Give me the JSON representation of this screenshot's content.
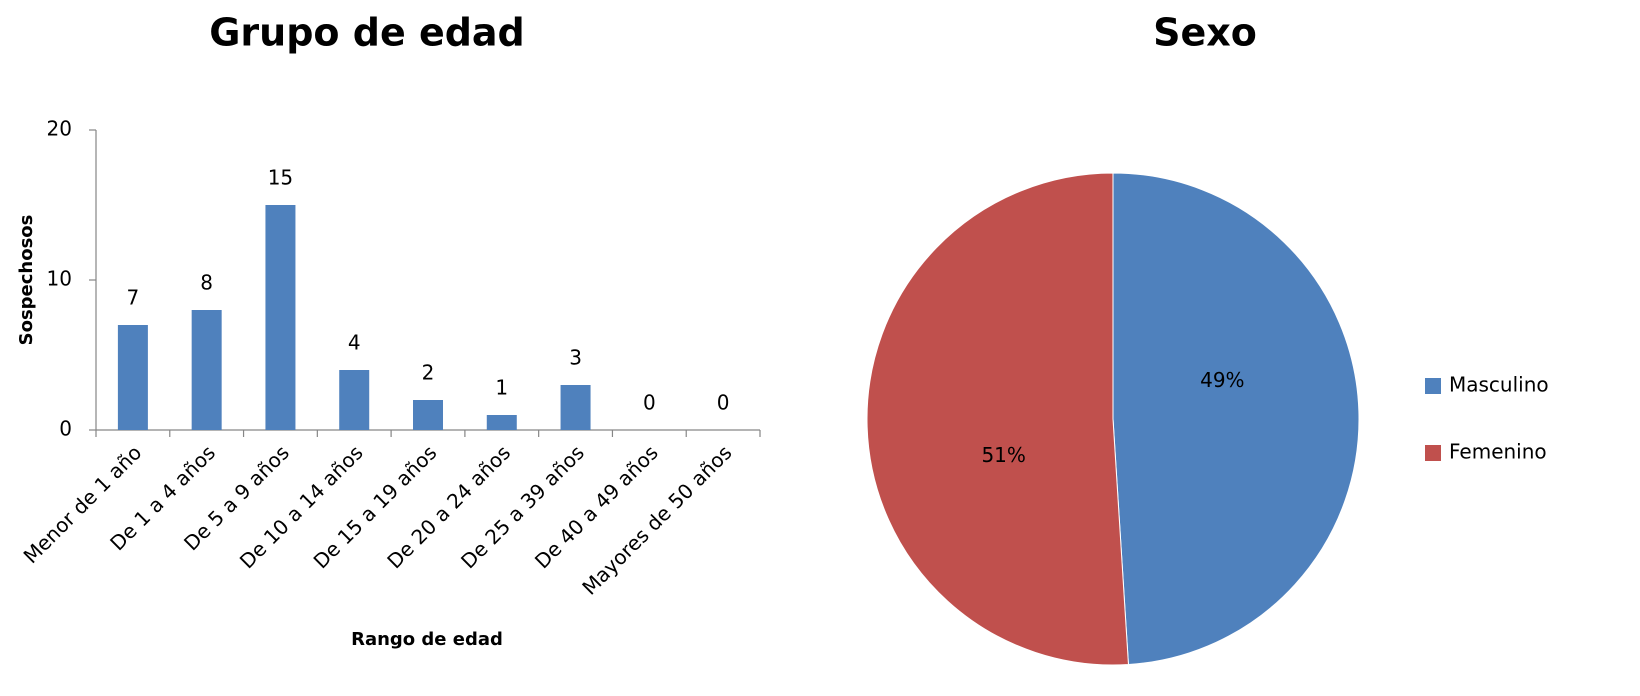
{
  "chart_data": [
    {
      "type": "bar",
      "title": "Grupo de edad",
      "x_label": "Rango de edad",
      "y_label": "Sospechosos",
      "categories": [
        "Menor de 1 año",
        "De 1 a 4 años",
        "De 5 a 9 años",
        "De 10 a 14 años",
        "De 15 a 19 años",
        "De 20 a 24 años",
        "De 25 a 39 años",
        "De 40 a 49 años",
        "Mayores de 50 años"
      ],
      "values": [
        7,
        8,
        15,
        4,
        2,
        1,
        3,
        0,
        0
      ],
      "color": "#4f81bd",
      "ylim": [
        0,
        20
      ],
      "yticks": [
        0,
        10,
        20
      ],
      "grid": false
    },
    {
      "type": "pie",
      "title": "Sexo",
      "categories": [
        "Masculino",
        "Femenino"
      ],
      "values": [
        49,
        51
      ],
      "value_labels": [
        "49%",
        "51%"
      ],
      "colors": [
        "#4f81bd",
        "#c0504d"
      ],
      "legend": "right"
    }
  ]
}
